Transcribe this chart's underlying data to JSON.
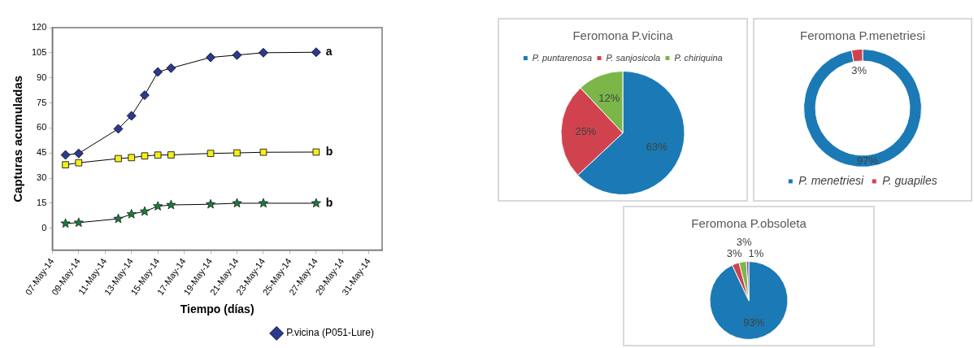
{
  "chart_data": [
    {
      "type": "line",
      "xlabel": "Tiempo (días)",
      "ylabel": "Capturas acumuladas",
      "x": [
        "--05-08",
        "--05-09",
        "--05-12",
        "--05-13",
        "--05-14",
        "--05-15",
        "--05-16",
        "--05-19",
        "--05-21",
        "--05-23",
        "--05-27"
      ],
      "series": [
        {
          "name": "P.vicina (P051-Lure)",
          "color": "#2b3990",
          "marker": "diamond",
          "values": [
            43.9,
            44.8,
            59.5,
            67.3,
            79.6,
            93.5,
            95.8,
            102.2,
            103.6,
            105,
            105.3
          ]
        },
        {
          "color": "#f2ef1a",
          "marker": "square",
          "values": [
            38,
            39.2,
            41.7,
            42.3,
            43.3,
            43.8,
            43.9,
            44.8,
            45.1,
            45.5,
            45.6
          ]
        },
        {
          "color": "#1d7a3c",
          "marker": "star",
          "values": [
            2.9,
            3.4,
            5.7,
            8.5,
            10.1,
            13.2,
            14,
            14.4,
            15,
            15,
            15
          ]
        }
      ],
      "xlim": [
        "--05-07",
        "--06-01"
      ],
      "xticks": [
        {
          "value": "--05-07",
          "label": "07-May-14"
        },
        {
          "value": "--05-09",
          "label": "09-May-14"
        },
        {
          "value": "--05-11",
          "label": "11-May-14"
        },
        {
          "value": "--05-13",
          "label": "13-May-14"
        },
        {
          "value": "--05-15",
          "label": "15-May-14"
        },
        {
          "value": "--05-17",
          "label": "17-May-14"
        },
        {
          "value": "--05-19",
          "label": "19-May-14"
        },
        {
          "value": "--05-21",
          "label": "21-May-14"
        },
        {
          "value": "--05-23",
          "label": "23-May-14"
        },
        {
          "value": "--05-25",
          "label": "25-May-14"
        },
        {
          "value": "--05-27",
          "label": "27-May-14"
        },
        {
          "value": "--05-29",
          "label": "29-May-14"
        },
        {
          "value": "--05-31",
          "label": "31-May-14"
        }
      ],
      "ylim": [
        -13,
        120
      ],
      "yticks": [
        0,
        15,
        30,
        45,
        60,
        75,
        90,
        105,
        120
      ],
      "annotations": [
        {
          "text": "a",
          "x": "--05-27",
          "y": 105.3
        },
        {
          "text": "b",
          "x": "--05-27",
          "y": 45.6
        },
        {
          "text": "b",
          "x": "--05-27",
          "y": 15
        }
      ],
      "legend": "bottom right",
      "line_style": "solid"
    },
    {
      "type": "pie",
      "title": "Feromona P.vicina",
      "categories": [
        "P. puntarenosa",
        "P. sanjosicola",
        "P. chiriquina"
      ],
      "values": [
        63,
        25,
        12
      ],
      "colors": [
        "#1b7ab5",
        "#d0434e",
        "#7ab648"
      ],
      "value_labels": [
        "63%",
        "25%",
        "12%"
      ],
      "legend": "top"
    },
    {
      "type": "donut",
      "title": "Feromona P.menetriesi",
      "categories": [
        "P. menetriesi",
        "P. guapiles"
      ],
      "values": [
        97,
        3
      ],
      "colors": [
        "#1b7ab5",
        "#d0434e"
      ],
      "value_labels": [
        "97%",
        "3%"
      ],
      "legend": "bottom"
    },
    {
      "type": "pie",
      "title": "Feromona P.obsoleta",
      "categories": [
        null,
        null,
        null,
        null
      ],
      "values": [
        93,
        3,
        3,
        1
      ],
      "colors": [
        "#1b7ab5",
        "#d0434e",
        "#7ab648",
        "#7b4fa0"
      ],
      "value_labels": [
        "93%",
        "3%",
        "3%",
        "1%"
      ]
    }
  ]
}
